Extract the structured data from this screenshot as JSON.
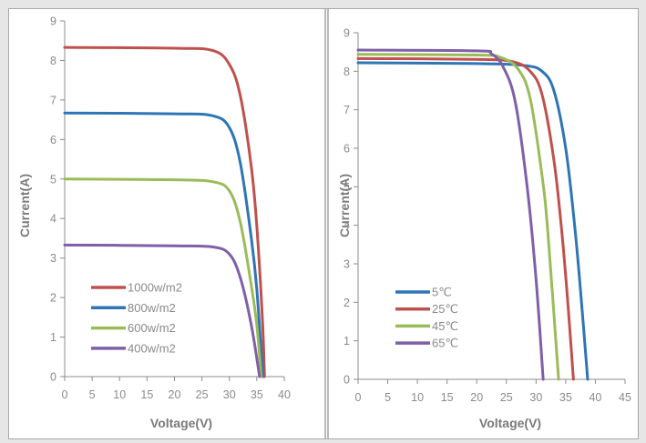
{
  "chart_data": [
    {
      "type": "line",
      "title": "",
      "xlabel": "Voltage(V)",
      "ylabel": "Current(A)",
      "xlim": [
        0,
        40
      ],
      "ylim": [
        0,
        9
      ],
      "x_ticks": [
        0,
        5,
        10,
        15,
        20,
        25,
        30,
        35,
        40
      ],
      "y_ticks": [
        0,
        1,
        2,
        3,
        4,
        5,
        6,
        7,
        8,
        9
      ],
      "grid": false,
      "legend_position": "bottom-left",
      "series": [
        {
          "name": "1000w/m2",
          "color": "#c0504d",
          "isc": 8.33,
          "voc": 36.4,
          "x": [
            0,
            20,
            27,
            30,
            32,
            34,
            35,
            36,
            36.4
          ],
          "y": [
            8.33,
            8.31,
            8.25,
            7.9,
            7.1,
            5.3,
            3.8,
            1.5,
            0
          ]
        },
        {
          "name": "800w/m2",
          "color": "#2e75b6",
          "isc": 6.67,
          "voc": 36.1,
          "x": [
            0,
            20,
            27,
            30,
            32,
            34,
            35,
            36.1
          ],
          "y": [
            6.67,
            6.65,
            6.6,
            6.3,
            5.4,
            3.5,
            2.2,
            0
          ]
        },
        {
          "name": "600w/m2",
          "color": "#9bbb59",
          "isc": 5.0,
          "voc": 35.8,
          "x": [
            0,
            20,
            27,
            30,
            32,
            34,
            35,
            35.8
          ],
          "y": [
            5.0,
            4.98,
            4.93,
            4.7,
            3.9,
            2.3,
            1.3,
            0
          ]
        },
        {
          "name": "400w/m2",
          "color": "#7f5fa8",
          "isc": 3.33,
          "voc": 35.5,
          "x": [
            0,
            20,
            27,
            30,
            32,
            34,
            35.5
          ],
          "y": [
            3.33,
            3.31,
            3.28,
            3.1,
            2.5,
            1.3,
            0
          ]
        }
      ]
    },
    {
      "type": "line",
      "title": "",
      "xlabel": "Voltage(V)",
      "ylabel": "Current(A)",
      "xlim": [
        0,
        45
      ],
      "ylim": [
        0,
        9
      ],
      "x_ticks": [
        0,
        5,
        10,
        15,
        20,
        25,
        30,
        35,
        40,
        45
      ],
      "y_ticks": [
        0,
        1,
        2,
        3,
        4,
        5,
        6,
        7,
        8,
        9
      ],
      "grid": false,
      "legend_position": "bottom-left",
      "series": [
        {
          "name": "5℃",
          "color": "#2e75b6",
          "isc": 8.22,
          "voc": 38.7,
          "x": [
            0,
            20,
            28,
            31,
            33,
            35,
            36.5,
            37.5,
            38.7
          ],
          "y": [
            8.22,
            8.2,
            8.15,
            8.0,
            7.5,
            6.0,
            4.0,
            2.3,
            0
          ]
        },
        {
          "name": "25℃",
          "color": "#c0504d",
          "isc": 8.33,
          "voc": 36.3,
          "x": [
            0,
            20,
            26,
            29,
            31,
            33,
            34.3,
            35.3,
            36.3
          ],
          "y": [
            8.33,
            8.31,
            8.25,
            8.0,
            7.4,
            5.7,
            3.9,
            2.1,
            0
          ]
        },
        {
          "name": "45℃",
          "color": "#9bbb59",
          "isc": 8.44,
          "voc": 33.8,
          "x": [
            0,
            20,
            24,
            27,
            29,
            31,
            32,
            33.8
          ],
          "y": [
            8.44,
            8.42,
            8.36,
            8.05,
            7.3,
            5.3,
            3.8,
            0
          ]
        },
        {
          "name": "65℃",
          "color": "#7f5fa8",
          "isc": 8.55,
          "voc": 31.2,
          "x": [
            0,
            20,
            22.5,
            24.5,
            26.5,
            28.5,
            30,
            31.2
          ],
          "y": [
            8.55,
            8.53,
            8.45,
            8.1,
            7.2,
            5.0,
            2.6,
            0
          ]
        }
      ]
    }
  ]
}
